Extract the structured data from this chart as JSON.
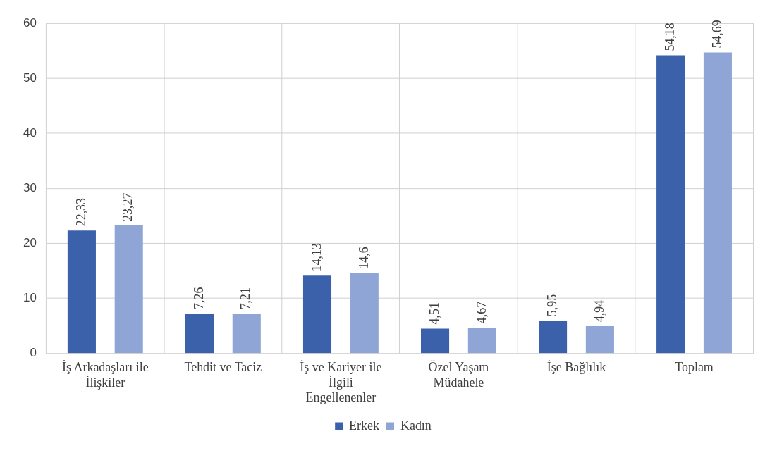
{
  "chart_data": {
    "type": "bar",
    "categories": [
      "İş Arkadaşları ile İlişkiler",
      "Tehdit ve Taciz",
      "İş ve Kariyer ile İlgili Engellenenler",
      "Özel Yaşam Müdahele",
      "İşe Bağlılık",
      "Toplam"
    ],
    "series": [
      {
        "name": "Erkek",
        "color": "#3c61ab",
        "values": [
          22.33,
          7.26,
          14.13,
          4.51,
          5.95,
          54.18
        ],
        "value_labels": [
          "22,33",
          "7,26",
          "14,13",
          "4,51",
          "5,95",
          "54,18"
        ]
      },
      {
        "name": "Kadın",
        "color": "#8fa5d6",
        "values": [
          23.27,
          7.21,
          14.6,
          4.67,
          4.94,
          54.69
        ],
        "value_labels": [
          "23,27",
          "7,21",
          "14,6",
          "4,67",
          "4,94",
          "54,69"
        ]
      }
    ],
    "ylim": [
      0,
      60
    ],
    "yticks": [
      0,
      10,
      20,
      30,
      40,
      50,
      60
    ],
    "grid": true,
    "legend": "bottom"
  }
}
